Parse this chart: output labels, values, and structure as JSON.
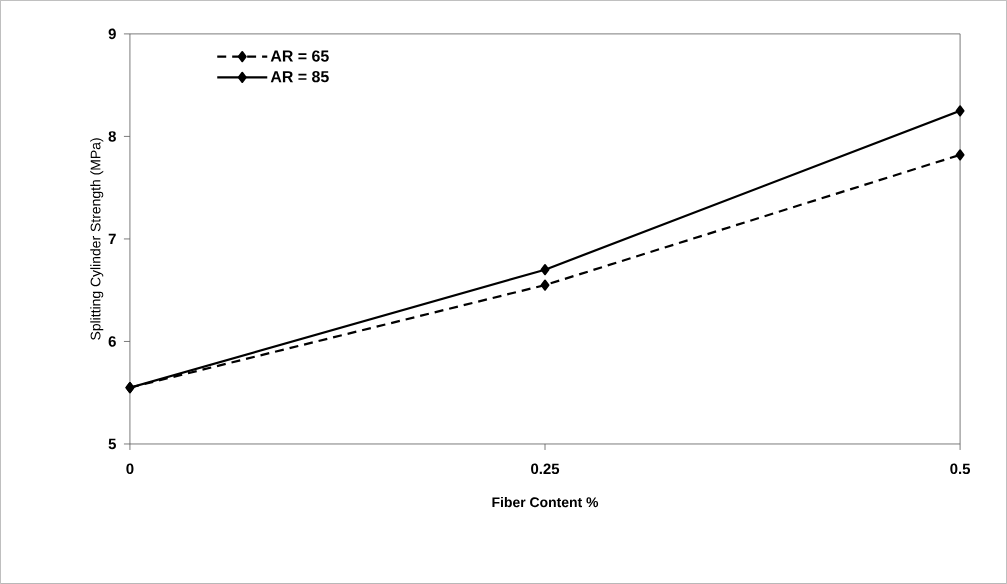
{
  "chart_data": {
    "type": "line",
    "xlabel": "Fiber Content %",
    "ylabel": "Splitting Cylinder Strength (MPa)",
    "x": [
      0,
      0.25,
      0.5
    ],
    "series": [
      {
        "name": "AR = 65",
        "color": "#000000",
        "values": [
          5.55,
          6.55,
          7.82
        ],
        "line_style": "dashed"
      },
      {
        "name": "AR = 85",
        "color": "#000000",
        "values": [
          5.55,
          6.7,
          8.25
        ],
        "line_style": "solid"
      }
    ],
    "xlim": [
      0,
      0.5
    ],
    "xticks": [
      0,
      0.25,
      0.5
    ],
    "ylim": [
      5,
      9
    ],
    "yticks": [
      5,
      6,
      7,
      8,
      9
    ],
    "marker": "diamond",
    "legend": "top left",
    "grid": false
  }
}
